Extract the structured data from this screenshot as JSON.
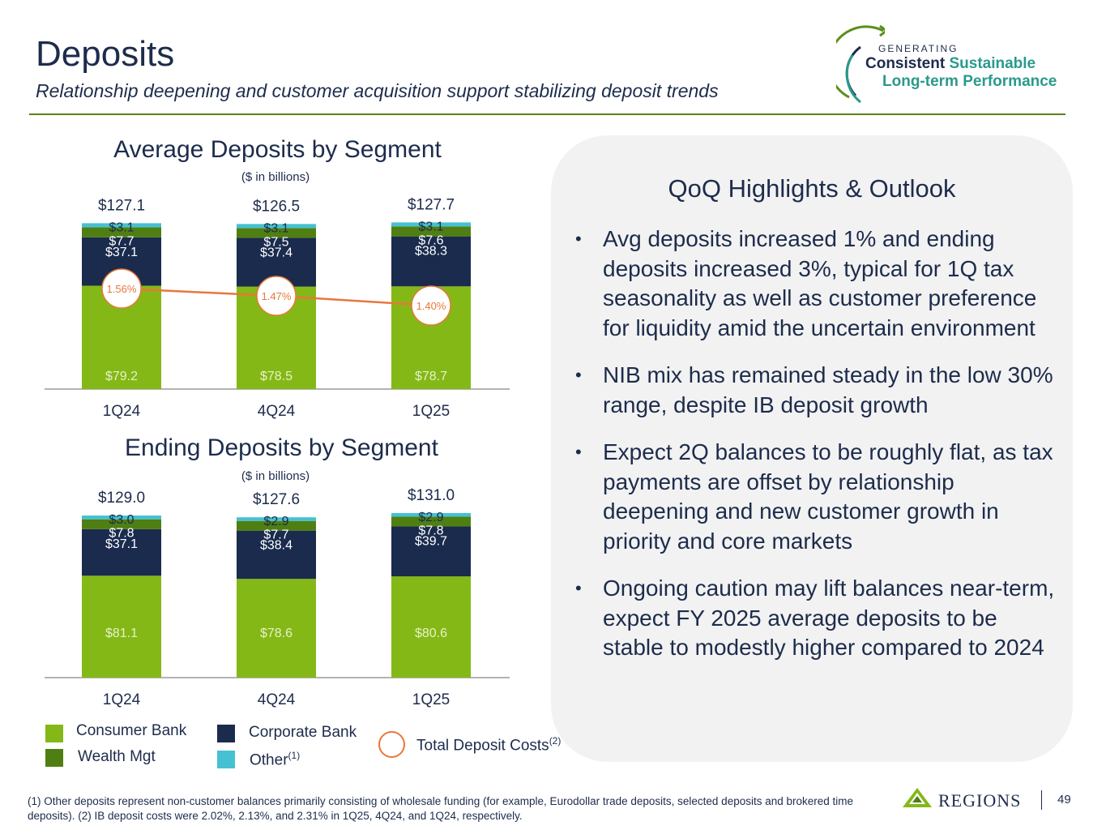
{
  "header": {
    "title": "Deposits",
    "subtitle": "Relationship deepening and customer acquisition support stabilizing deposit trends"
  },
  "logo": {
    "generating": "GENERATING",
    "line1_a": "Consistent",
    "line1_b": "Sustainable",
    "line2": "Long-term Performance"
  },
  "colors": {
    "consumer": "#84b817",
    "wealth": "#4f7f12",
    "corporate": "#1a2b4d",
    "other": "#45c1d2",
    "cost": "#e8773a",
    "axis": "#9a9a9a"
  },
  "chart_data": [
    {
      "type": "bar",
      "stacked": true,
      "title": "Average Deposits by Segment",
      "unit": "($ in billions)",
      "categories": [
        "1Q24",
        "4Q24",
        "1Q25"
      ],
      "totals": [
        "$127.1",
        "$126.5",
        "$127.7"
      ],
      "series": [
        {
          "name": "Consumer Bank",
          "values": [
            79.2,
            78.5,
            78.7
          ],
          "labels": [
            "$79.2",
            "$78.5",
            "$78.7"
          ]
        },
        {
          "name": "Corporate Bank",
          "values": [
            37.1,
            37.4,
            38.3
          ],
          "labels": [
            "$37.1",
            "$37.4",
            "$38.3"
          ]
        },
        {
          "name": "Wealth Mgt",
          "values": [
            7.7,
            7.5,
            7.6
          ],
          "labels": [
            "$7.7",
            "$7.5",
            "$7.6"
          ]
        },
        {
          "name": "Other",
          "values": [
            3.1,
            3.1,
            3.1
          ],
          "labels": [
            "$3.1",
            "$3.1",
            "$3.1"
          ]
        }
      ],
      "line": {
        "name": "Total Deposit Costs",
        "values": [
          1.56,
          1.47,
          1.4
        ],
        "labels": [
          "1.56%",
          "1.47%",
          "1.40%"
        ]
      }
    },
    {
      "type": "bar",
      "stacked": true,
      "title": "Ending Deposits by Segment",
      "unit": "($ in billions)",
      "categories": [
        "1Q24",
        "4Q24",
        "1Q25"
      ],
      "totals": [
        "$129.0",
        "$127.6",
        "$131.0"
      ],
      "series": [
        {
          "name": "Consumer Bank",
          "values": [
            81.1,
            78.6,
            80.6
          ],
          "labels": [
            "$81.1",
            "$78.6",
            "$80.6"
          ]
        },
        {
          "name": "Corporate Bank",
          "values": [
            37.1,
            38.4,
            39.7
          ],
          "labels": [
            "$37.1",
            "$38.4",
            "$39.7"
          ]
        },
        {
          "name": "Wealth Mgt",
          "values": [
            7.8,
            7.7,
            7.8
          ],
          "labels": [
            "$7.8",
            "$7.7",
            "$7.8"
          ]
        },
        {
          "name": "Other",
          "values": [
            3.0,
            2.9,
            2.9
          ],
          "labels": [
            "$3.0",
            "$2.9",
            "$2.9"
          ]
        }
      ]
    }
  ],
  "legend": {
    "consumer": "Consumer Bank",
    "wealth": "Wealth Mgt",
    "corporate": "Corporate Bank",
    "other": "Other",
    "other_sup": "(1)",
    "cost": "Total Deposit Costs",
    "cost_sup": "(2)"
  },
  "panel": {
    "title": "QoQ Highlights & Outlook",
    "bullet_glyph": "•",
    "bullets": [
      "Avg deposits increased 1% and ending deposits increased 3%, typical for 1Q tax seasonality as well as customer preference for liquidity amid the uncertain environment",
      "NIB mix has remained steady in the low 30% range, despite IB deposit growth",
      "Expect 2Q balances to be roughly flat, as tax payments are offset by relationship deepening and new customer growth in priority and core markets",
      "Ongoing caution may lift balances near-term, expect FY 2025 average deposits to be stable to modestly higher compared to 2024"
    ]
  },
  "footnote": "(1) Other deposits represent non-customer balances primarily consisting of wholesale funding (for example, Eurodollar trade deposits, selected deposits and brokered time deposits).  (2) IB deposit costs were 2.02%, 2.13%, and 2.31% in 1Q25, 4Q24, and 1Q24, respectively.",
  "brand": {
    "name": "REGIONS"
  },
  "page_number": "49"
}
